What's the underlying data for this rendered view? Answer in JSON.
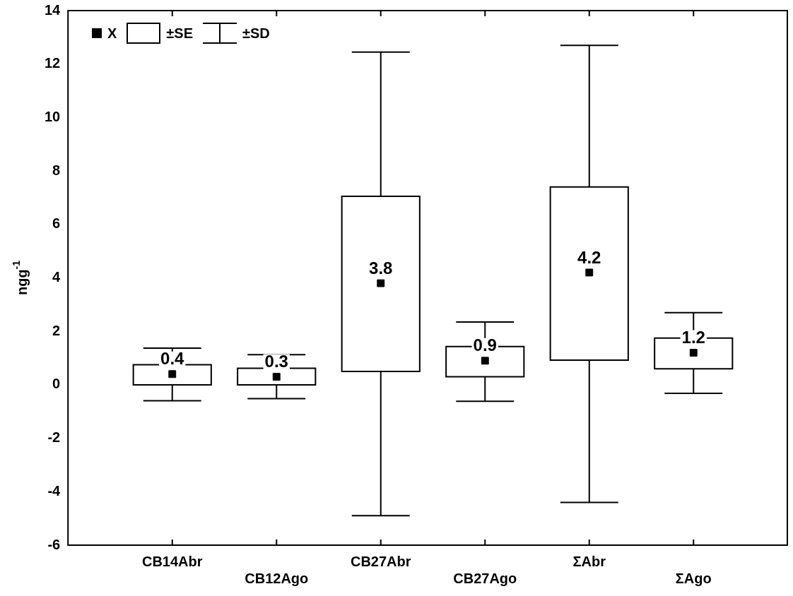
{
  "chart_data": {
    "type": "box",
    "ylabel": "ngg$^{-1}$",
    "categories": [
      "CB14Abr",
      "CB12Ago",
      "CB27Abr",
      "CB27Ago",
      "ΣAbr",
      "ΣAgo"
    ],
    "boxes": [
      {
        "low": -0.6,
        "q1": 0,
        "q3": 0.75,
        "high": 1.37,
        "mean": 0.4
      },
      {
        "low": -0.52,
        "q1": 0,
        "q3": 0.62,
        "high": 1.13,
        "mean": 0.3
      },
      {
        "low": -4.9,
        "q1": 0.5,
        "q3": 7.05,
        "high": 12.45,
        "mean": 3.8
      },
      {
        "low": -0.62,
        "q1": 0.3,
        "q3": 1.43,
        "high": 2.35,
        "mean": 0.9
      },
      {
        "low": -4.4,
        "q1": 0.92,
        "q3": 7.4,
        "high": 12.7,
        "mean": 4.2
      },
      {
        "low": -0.32,
        "q1": 0.6,
        "q3": 1.75,
        "high": 2.7,
        "mean": 1.2
      }
    ],
    "value_labels": [
      "0.4",
      "0.3",
      "3.8",
      "0.9",
      "4.2",
      "1.2"
    ],
    "annotations": [
      "X",
      "±SE",
      "±SD"
    ],
    "marker": "square",
    "grid": false,
    "ylim": [
      -6,
      14
    ],
    "yticks": [
      -6,
      -4,
      -2,
      0,
      2,
      4,
      6,
      8,
      10,
      12,
      14
    ]
  }
}
